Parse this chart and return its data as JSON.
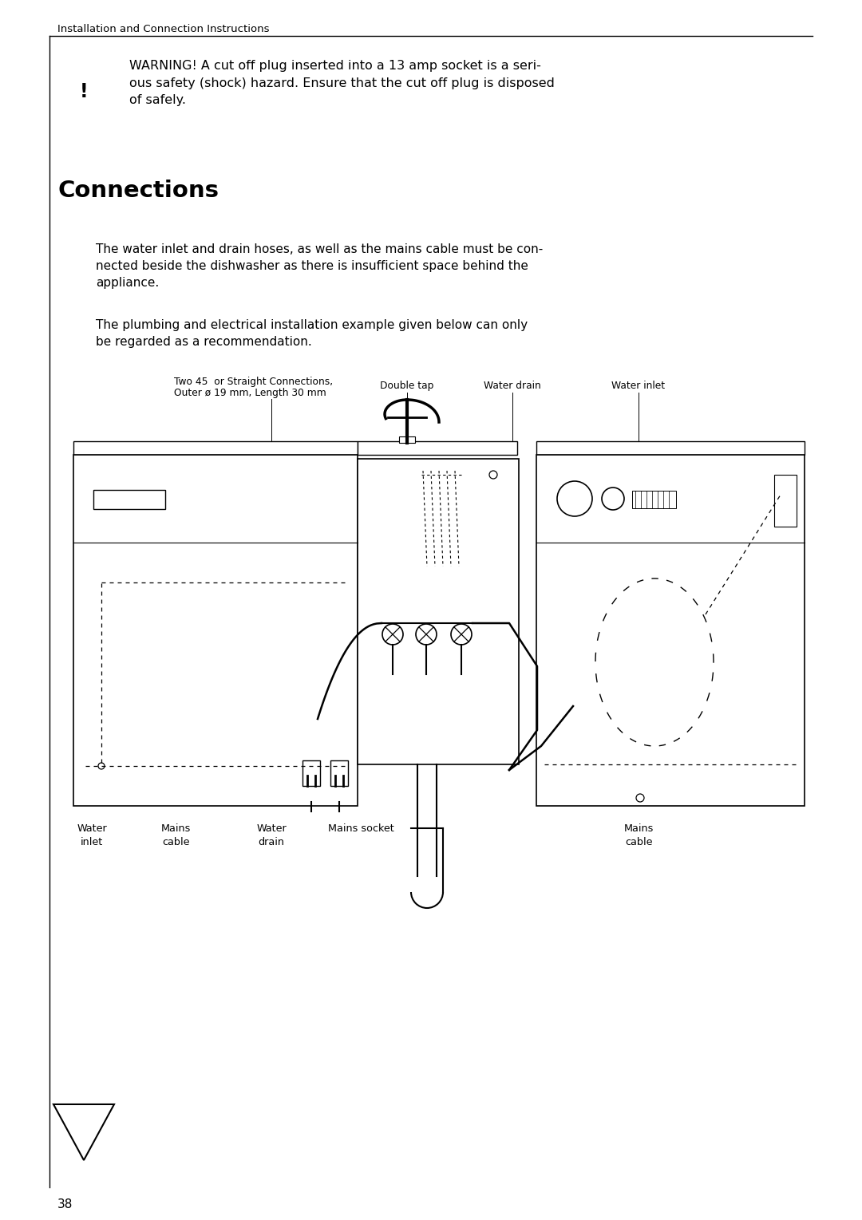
{
  "page_title": "Installation and Connection Instructions",
  "section_title": "Connections",
  "warning_text": "WARNING! A cut off plug inserted into a 13 amp socket is a seri-\nous safety (shock) hazard. Ensure that the cut off plug is disposed\nof safely.",
  "para1": "The water inlet and drain hoses, as well as the mains cable must be con-\nnected beside the dishwasher as there is insufficient space behind the\nappliance.",
  "para2": "The plumbing and electrical installation example given below can only\nbe regarded as a recommendation.",
  "label_top1": "Two 45  or Straight Connections,",
  "label_top2": "Outer ø 19 mm, Length 30 mm",
  "label_double_tap": "Double tap",
  "label_water_drain_top": "Water drain",
  "label_water_inlet_top": "Water inlet",
  "label_water_inlet_bot": "Water\ninlet",
  "label_mains_cable_bot1": "Mains\ncable",
  "label_water_drain_bot": "Water\ndrain",
  "label_mains_socket": "Mains socket",
  "label_mains_cable_bot2": "Mains\ncable",
  "page_number": "38",
  "bg_color": "#ffffff",
  "text_color": "#000000",
  "line_color": "#000000"
}
